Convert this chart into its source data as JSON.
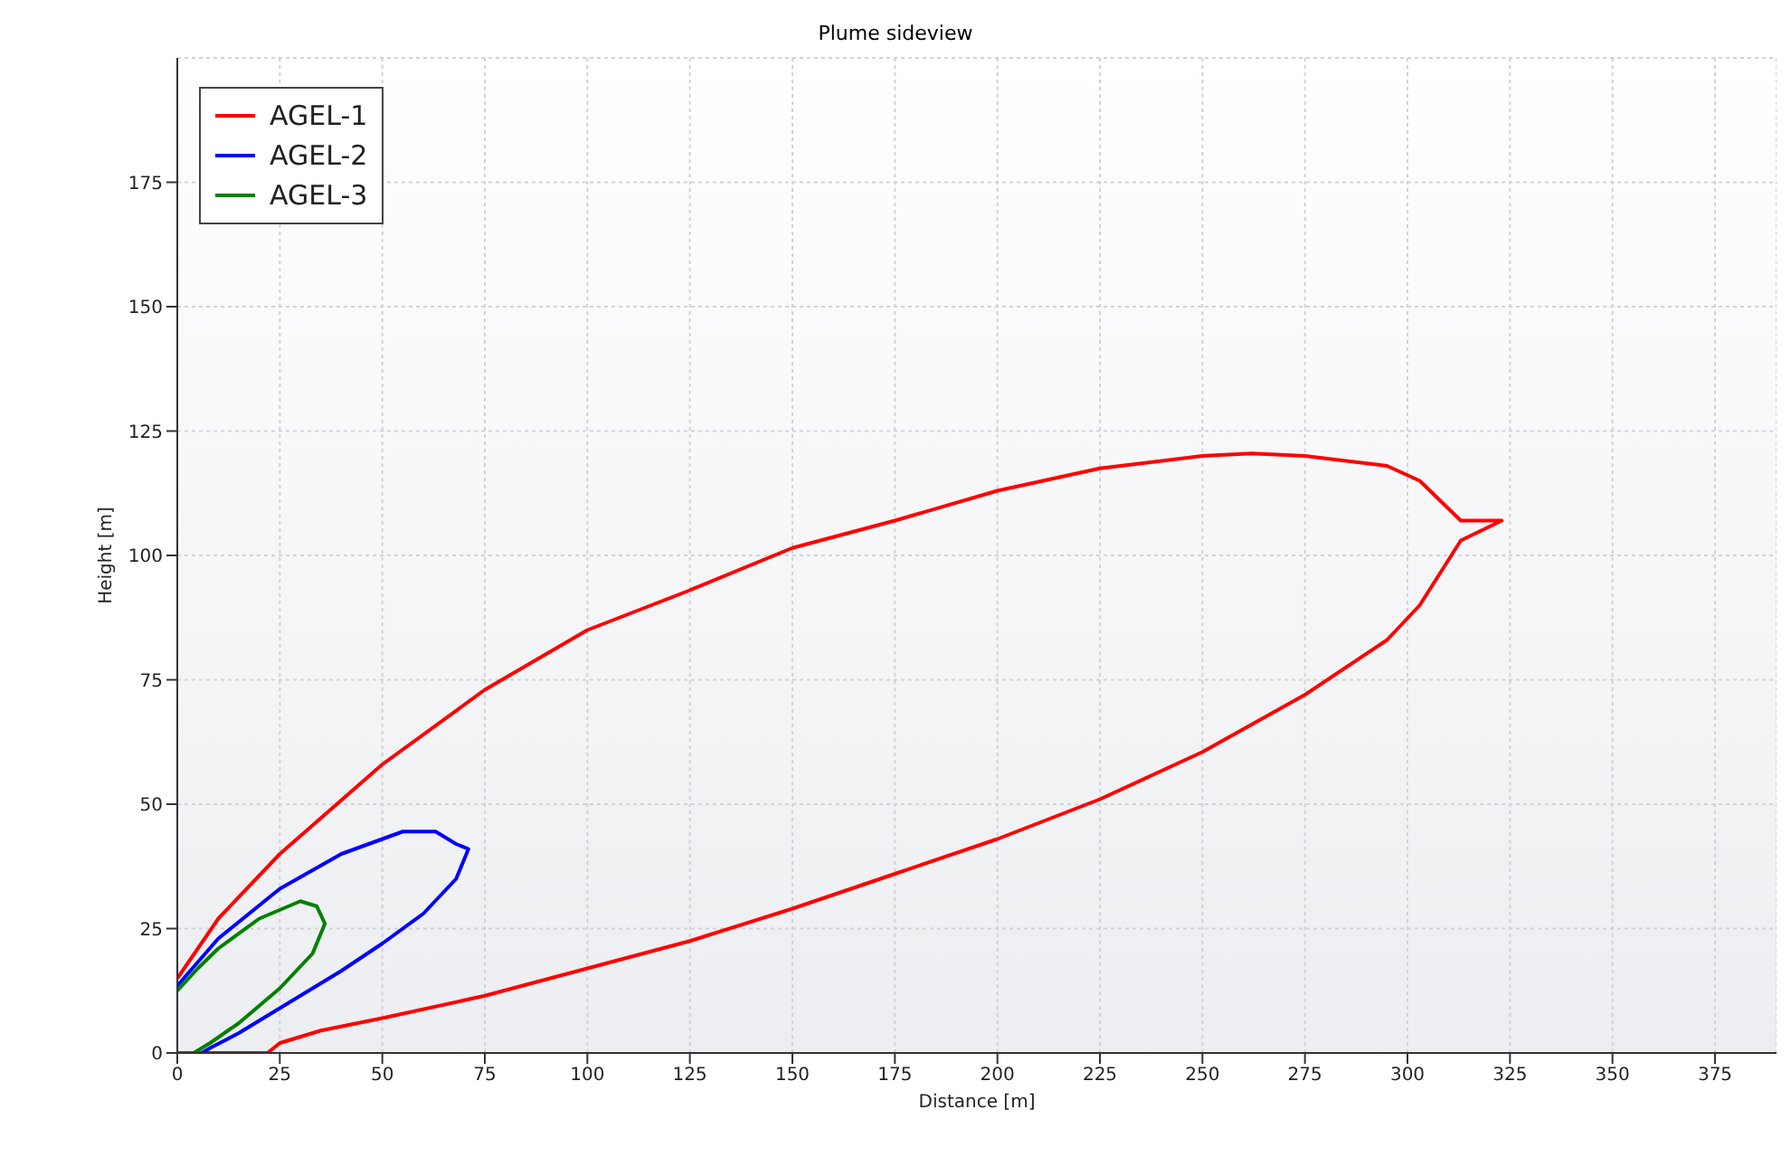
{
  "chart_data": {
    "type": "line",
    "title": "Plume sideview",
    "xlabel": "Distance [m]",
    "ylabel": "Height [m]",
    "xlim": [
      0,
      390
    ],
    "ylim": [
      0,
      200
    ],
    "xticks": [
      0,
      25,
      50,
      75,
      100,
      125,
      150,
      175,
      200,
      225,
      250,
      275,
      300,
      325,
      350,
      375
    ],
    "yticks": [
      0,
      25,
      50,
      75,
      100,
      125,
      150,
      175
    ],
    "grid": true,
    "legend": "top left",
    "marker": "none",
    "line_style": "solid",
    "series": [
      {
        "name": "AGEL-1",
        "color": "#ff0000",
        "x": [
          0,
          22,
          25,
          35,
          50,
          75,
          100,
          125,
          150,
          175,
          200,
          225,
          250,
          275,
          295,
          303,
          313,
          323,
          313,
          303,
          295,
          275,
          262,
          250,
          225,
          200,
          175,
          150,
          125,
          100,
          75,
          50,
          25,
          10,
          0
        ],
        "values": [
          0,
          0,
          2,
          4.5,
          7,
          11.5,
          17,
          22.5,
          29,
          36,
          43,
          51,
          60.5,
          72,
          83,
          90,
          103,
          107,
          107,
          115,
          118,
          120,
          120.5,
          120,
          117.5,
          113,
          107,
          101.5,
          93,
          85,
          73,
          58,
          40,
          27,
          15
        ]
      },
      {
        "name": "AGEL-2",
        "color": "#0000ff",
        "x": [
          0,
          10,
          25,
          40,
          55,
          63,
          68,
          71,
          68,
          60,
          50,
          40,
          25,
          15,
          8,
          6
        ],
        "values": [
          13.5,
          23,
          33,
          40,
          44.5,
          44.5,
          42,
          41,
          35,
          28,
          22,
          16.5,
          9,
          4,
          1,
          0
        ]
      },
      {
        "name": "AGEL-3",
        "color": "#008000",
        "x": [
          0,
          5,
          10,
          20,
          30,
          34,
          36,
          33,
          25,
          15,
          8,
          4,
          0
        ],
        "values": [
          12.5,
          17,
          21,
          27,
          30.5,
          29.5,
          26,
          20,
          13,
          6,
          2,
          0,
          0
        ]
      }
    ]
  }
}
